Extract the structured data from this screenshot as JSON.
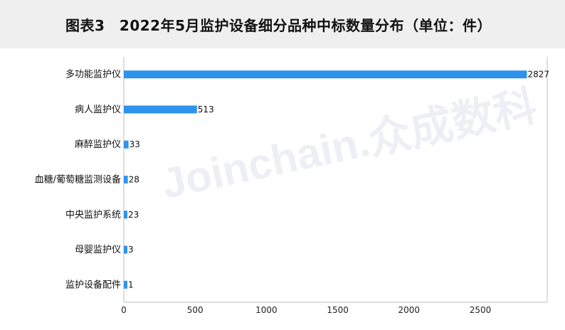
{
  "title": "图表3　2022年5月监护设备细分品种中标数量分布（单位：件）",
  "watermark": "Joinchain.众成数科",
  "chart_data": {
    "type": "bar",
    "orientation": "horizontal",
    "categories": [
      "多功能监护仪",
      "病人监护仪",
      "麻醉监护仪",
      "血糖/葡萄糖监测设备",
      "中央监护系统",
      "母婴监护仪",
      "监护设备配件"
    ],
    "values": [
      2827,
      513,
      33,
      28,
      23,
      3,
      1
    ],
    "xticks": [
      0,
      500,
      1000,
      1500,
      2000,
      2500
    ],
    "xlim": [
      0,
      3000
    ],
    "bar_color": "#2E93EC",
    "title": "2022年5月监护设备细分品种中标数量分布（单位：件）",
    "xlabel": "",
    "ylabel": "",
    "grid": false
  }
}
